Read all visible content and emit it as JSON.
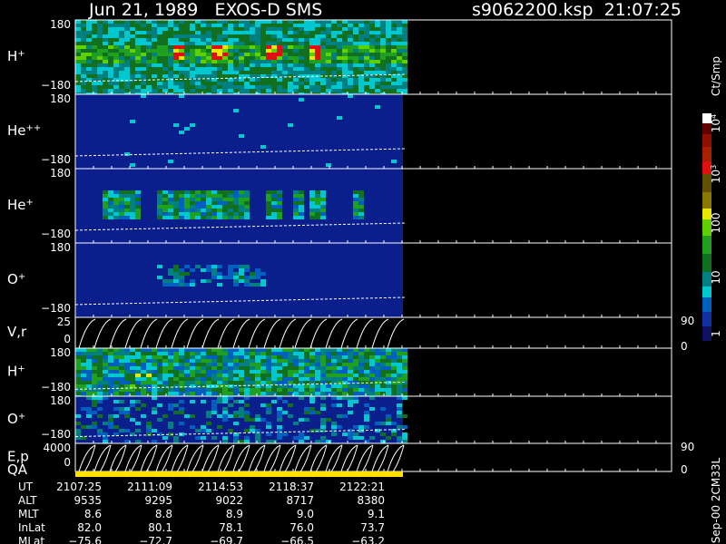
{
  "header": {
    "title": "Jun 21, 1989   EXOS-D SMS",
    "file": "s9062200.ksp  21:07:25"
  },
  "panels": [
    {
      "label": "H",
      "sup": "+",
      "top": "180",
      "bottom": "−180"
    },
    {
      "label": "He",
      "sup": "++",
      "top": "180",
      "bottom": "−180"
    },
    {
      "label": "He",
      "sup": "+",
      "top": "180",
      "bottom": "−180"
    },
    {
      "label": "O",
      "sup": "+",
      "top": "180",
      "bottom": "−180"
    },
    {
      "label": "V,r",
      "top": "25",
      "bottom": "0",
      "right_top": "90",
      "right_bottom": "0"
    },
    {
      "label": "H",
      "sup": "+",
      "top": "180",
      "bottom": "−180"
    },
    {
      "label": "O",
      "sup": "+",
      "top": "180",
      "bottom": "−180"
    },
    {
      "label": "E,p",
      "top": "4000",
      "bottom": "0",
      "right_top": "90",
      "right_bottom": "0"
    }
  ],
  "qa": "QA",
  "colorbar": {
    "unit": "Ct/Smp",
    "exp_labels": [
      {
        "base": "10",
        "sup": "4"
      },
      {
        "base": "10",
        "sup": "3"
      }
    ],
    "labels": [
      "100",
      "10",
      "1"
    ]
  },
  "footer": {
    "rows": [
      {
        "name": "UT",
        "values": [
          "2107:25",
          "2111:09",
          "2114:53",
          "2118:37",
          "2122:21"
        ]
      },
      {
        "name": "ALT",
        "values": [
          "9535",
          "9295",
          "9022",
          "8717",
          "8380"
        ]
      },
      {
        "name": "MLT",
        "values": [
          "8.6",
          "8.8",
          "8.9",
          "9.0",
          "9.1"
        ]
      },
      {
        "name": "InLat",
        "values": [
          "82.0",
          "80.1",
          "78.1",
          "76.0",
          "73.7"
        ]
      },
      {
        "name": "MLat",
        "values": [
          "−75.6",
          "−72.7",
          "−69.7",
          "−66.5",
          "−63.2"
        ]
      }
    ]
  },
  "version": "Sep-00 2CM33L"
}
